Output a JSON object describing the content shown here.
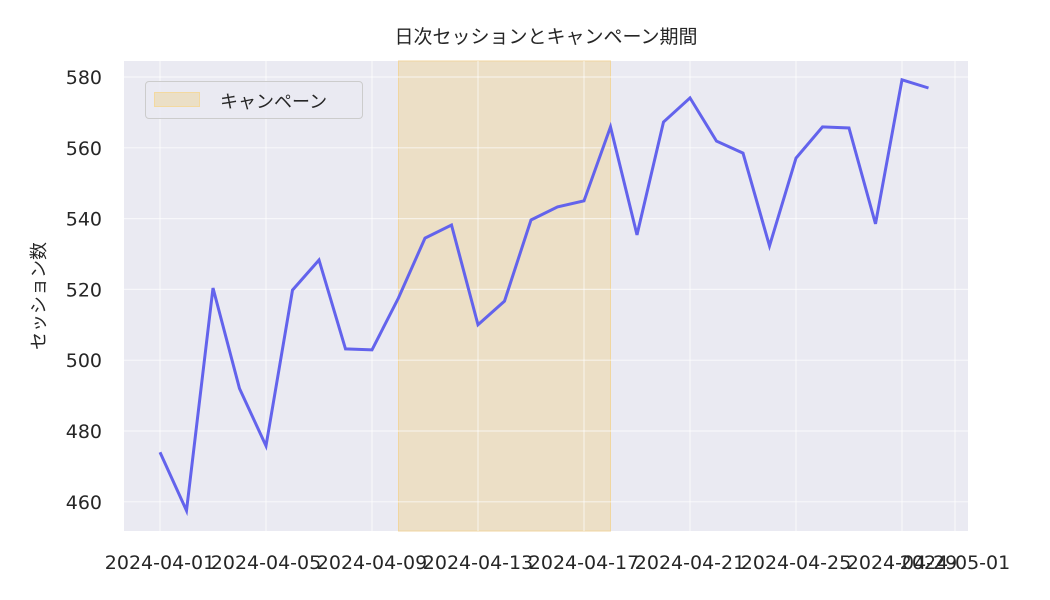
{
  "chart_data": {
    "type": "line",
    "title": "日次セッションとキャンペーン期間",
    "xlabel": "",
    "ylabel": "セッション数",
    "ylim": [
      452,
      585
    ],
    "yticks": [
      460,
      480,
      500,
      520,
      540,
      560,
      580
    ],
    "xticks": [
      "2024-04-01",
      "2024-04-05",
      "2024-04-09",
      "2024-04-13",
      "2024-04-17",
      "2024-04-21",
      "2024-04-25",
      "2024-04-29",
      "2024-05-01"
    ],
    "grid": true,
    "legend_position": "upper left",
    "x": [
      "2024-04-01",
      "2024-04-02",
      "2024-04-03",
      "2024-04-04",
      "2024-04-05",
      "2024-04-06",
      "2024-04-07",
      "2024-04-08",
      "2024-04-09",
      "2024-04-10",
      "2024-04-11",
      "2024-04-12",
      "2024-04-13",
      "2024-04-14",
      "2024-04-15",
      "2024-04-16",
      "2024-04-17",
      "2024-04-18",
      "2024-04-19",
      "2024-04-20",
      "2024-04-21",
      "2024-04-22",
      "2024-04-23",
      "2024-04-24",
      "2024-04-25",
      "2024-04-26",
      "2024-04-27",
      "2024-04-28",
      "2024-04-29",
      "2024-04-30"
    ],
    "series": [
      {
        "name": "セッション数",
        "color": "#6363ec",
        "values": [
          474,
          457.5,
          520.4,
          492,
          475.8,
          519.8,
          528.3,
          503.2,
          502.9,
          517.6,
          534.5,
          538.2,
          510,
          516.7,
          539.6,
          543.3,
          545,
          565.9,
          535.4,
          567.3,
          574.1,
          561.9,
          558.5,
          532.3,
          557.1,
          565.9,
          565.6,
          538.5,
          579.2,
          576.9
        ]
      }
    ],
    "annotations": [
      {
        "type": "span",
        "label": "キャンペーン",
        "start": "2024-04-10",
        "end": "2024-04-18",
        "color": "#f0c36b",
        "alpha": 0.3
      }
    ]
  },
  "legend": {
    "items": [
      {
        "label": "キャンペーン",
        "swatch_color": "#ebdfc6"
      }
    ]
  },
  "colors": {
    "axes_bg": "#eaeaf2",
    "grid": "#ffffff",
    "line": "#6363ec",
    "span": "#ecdfc6"
  }
}
